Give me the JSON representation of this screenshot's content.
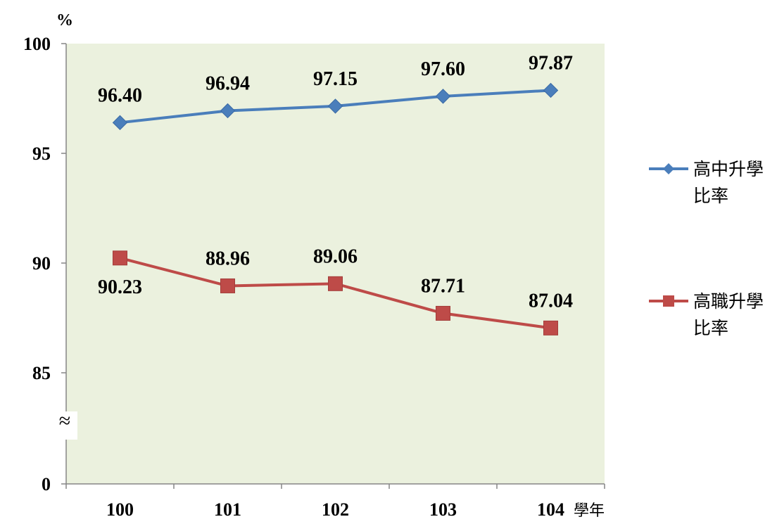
{
  "chart_data": {
    "type": "line",
    "categories": [
      "100",
      "101",
      "102",
      "103",
      "104"
    ],
    "x_unit": "學年",
    "y_unit": "%",
    "y_ticks": [
      "0",
      "85",
      "90",
      "95",
      "100"
    ],
    "axis_break_symbol": "≈",
    "series": [
      {
        "name": "高中升學比率",
        "legend_lines": [
          "高中升學",
          "比率"
        ],
        "values": [
          96.4,
          96.94,
          97.15,
          97.6,
          97.87
        ],
        "labels": [
          "96.40",
          "96.94",
          "97.15",
          "97.60",
          "97.87"
        ],
        "color": "#4a7ebb",
        "marker": "diamond"
      },
      {
        "name": "高職升學比率",
        "legend_lines": [
          "高職升學",
          "比率"
        ],
        "values": [
          90.23,
          88.96,
          89.06,
          87.71,
          87.04
        ],
        "labels": [
          "90.23",
          "88.96",
          "89.06",
          "87.71",
          "87.04"
        ],
        "color": "#be4b48",
        "marker": "square"
      }
    ],
    "plot_background": "#ebf1de",
    "legend_position": "right",
    "grid": false
  }
}
